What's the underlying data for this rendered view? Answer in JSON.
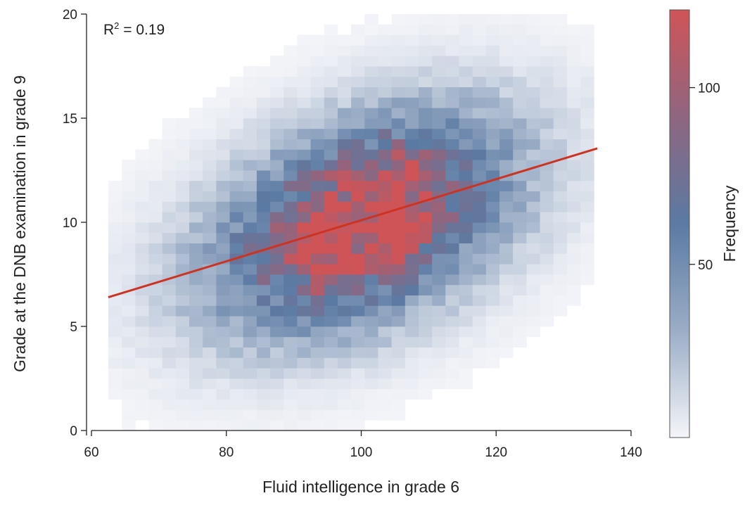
{
  "chart_data": {
    "type": "heatmap",
    "title": "",
    "xlabel": "Fluid intelligence in grade 6",
    "ylabel": "Grade at the DNB examination in grade 9",
    "xlim": [
      60,
      140
    ],
    "ylim": [
      0,
      20
    ],
    "xticks": [
      60,
      80,
      100,
      120,
      140
    ],
    "yticks": [
      0,
      5,
      10,
      15,
      20
    ],
    "annotation": {
      "r2_prefix": "R",
      "r2_sup": "2",
      "r2_value": " = 0.19"
    },
    "bins": {
      "x_start": 62.5,
      "x_width": 2,
      "x_count": 36,
      "y_start": 0,
      "y_width": 0.5,
      "y_count": 40
    },
    "density_model": {
      "center_x": 100,
      "center_y": 10,
      "sd_x": 15,
      "sd_y": 3.2,
      "slope": 0.097,
      "peak_count": 118,
      "hotspots": [
        {
          "x": 95.5,
          "y": 9.2,
          "sx": 3,
          "sy": 1.6,
          "boost": 0.25
        },
        {
          "x": 105.5,
          "y": 10.5,
          "sx": 2,
          "sy": 2.2,
          "boost": 0.3
        }
      ]
    },
    "regression": {
      "x": [
        62.5,
        135
      ],
      "y": [
        6.4,
        13.55
      ],
      "color": "#cc3322"
    },
    "colorbar": {
      "label": "Frequency",
      "min": 1,
      "max": 122,
      "ticks": [
        50,
        100
      ],
      "colors": [
        "#f4f5f9",
        "#9badc6",
        "#5b7aa3",
        "#8f6680",
        "#cf5458"
      ]
    }
  }
}
